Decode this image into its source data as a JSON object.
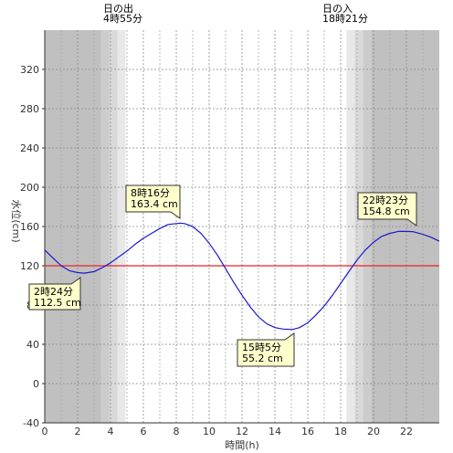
{
  "chart_data": {
    "type": "line",
    "xlabel": "時間(h)",
    "ylabel": "水位(cm)",
    "xlim": [
      0,
      24
    ],
    "ylim": [
      -40,
      360
    ],
    "x_ticks": [
      0,
      2,
      4,
      6,
      8,
      10,
      12,
      14,
      16,
      18,
      20,
      22
    ],
    "y_ticks": [
      -40,
      0,
      40,
      80,
      120,
      160,
      200,
      240,
      280,
      320
    ],
    "grid": true,
    "reference_line": {
      "value": 120,
      "color": "#ee2222"
    },
    "sunrise": {
      "label": "日の出",
      "time_text": "4時55分",
      "hour": 4.917
    },
    "sunset": {
      "label": "日の入",
      "time_text": "18時21分",
      "hour": 18.35
    },
    "series": [
      {
        "color": "#1a1acc",
        "x": [
          0,
          0.5,
          1,
          1.5,
          2,
          2.4,
          3,
          3.5,
          4,
          4.5,
          5,
          5.5,
          6,
          6.5,
          7,
          7.5,
          8,
          8.27,
          8.5,
          9,
          9.5,
          10,
          10.5,
          11,
          11.5,
          12,
          12.5,
          13,
          13.5,
          14,
          14.5,
          15.08,
          15.5,
          16,
          16.5,
          17,
          17.5,
          18,
          18.5,
          19,
          19.5,
          20,
          20.5,
          21,
          21.5,
          22,
          22.38,
          23,
          23.5,
          24
        ],
        "y": [
          136,
          128,
          120,
          115,
          113,
          112.5,
          114,
          118,
          123,
          129,
          135,
          142,
          148,
          153,
          158,
          162,
          163,
          163.4,
          163,
          160,
          153,
          143,
          131,
          117,
          103,
          90,
          78,
          68,
          61,
          57,
          55.5,
          55.2,
          57,
          62,
          70,
          79,
          90,
          102,
          114,
          126,
          136,
          144,
          150,
          153,
          155,
          155,
          154.8,
          152,
          149,
          145
        ]
      }
    ],
    "annotations": [
      {
        "time": "2時24分",
        "value": "112.5 cm"
      },
      {
        "time": "8時16分",
        "value": "163.4 cm"
      },
      {
        "time": "15時5分",
        "value": "55.2 cm"
      },
      {
        "time": "22時23分",
        "value": "154.8 cm"
      }
    ]
  }
}
